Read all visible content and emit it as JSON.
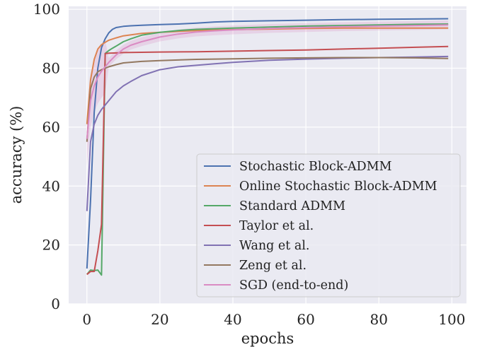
{
  "chart_data": {
    "type": "line",
    "title": "",
    "xlabel": "epochs",
    "ylabel": "accuracy (%)",
    "xlim": [
      -5,
      104
    ],
    "ylim": [
      0,
      101
    ],
    "xticks": [
      0,
      20,
      40,
      60,
      80,
      100
    ],
    "yticks": [
      0,
      20,
      40,
      60,
      80,
      100
    ],
    "xtick_labels": [
      "0",
      "20",
      "40",
      "60",
      "80",
      "100"
    ],
    "ytick_labels": [
      "0",
      "20",
      "40",
      "60",
      "80",
      "100"
    ],
    "grid": true,
    "legend_position": "lower-right",
    "series": [
      {
        "name": "Stochastic Block-ADMM",
        "color": "#4c72b0",
        "x": [
          0,
          1,
          2,
          3,
          4,
          5,
          6,
          7,
          8,
          10,
          12,
          15,
          20,
          25,
          30,
          35,
          40,
          50,
          60,
          70,
          80,
          90,
          99
        ],
        "y": [
          12,
          35,
          65,
          80,
          87,
          90,
          92,
          93.2,
          93.8,
          94.2,
          94.4,
          94.6,
          94.8,
          95.0,
          95.3,
          95.7,
          95.9,
          96.1,
          96.3,
          96.5,
          96.6,
          96.7,
          96.8
        ]
      },
      {
        "name": "Online Stochastic Block-ADMM",
        "color": "#dd8452",
        "x": [
          0,
          1,
          2,
          3,
          4,
          5,
          6,
          8,
          10,
          15,
          20,
          25,
          30,
          40,
          50,
          60,
          70,
          80,
          90,
          99
        ],
        "y": [
          61,
          76,
          83,
          86.5,
          88,
          88.8,
          89.5,
          90.3,
          91,
          91.8,
          92.2,
          92.5,
          92.8,
          93.1,
          93.3,
          93.5,
          93.6,
          93.6,
          93.6,
          93.6
        ]
      },
      {
        "name": "Standard ADMM",
        "color": "#55a868",
        "x": [
          0,
          1,
          2,
          3,
          4,
          5,
          6,
          7,
          8,
          10,
          12,
          15,
          20,
          25,
          30,
          40,
          50,
          60,
          70,
          80,
          90,
          99
        ],
        "y": [
          10,
          11.5,
          11.3,
          11.5,
          9.8,
          85,
          86,
          86.8,
          87.5,
          89,
          90,
          91.2,
          92.2,
          92.8,
          93.2,
          93.6,
          94,
          94.3,
          94.5,
          94.7,
          94.9,
          95
        ]
      },
      {
        "name": "Taylor et al.",
        "color": "#c44e52",
        "x": [
          0,
          1,
          2,
          3,
          4,
          5,
          6,
          8,
          10,
          20,
          30,
          40,
          50,
          60,
          70,
          80,
          90,
          99
        ],
        "y": [
          10,
          11,
          11,
          18,
          27,
          85,
          85.1,
          85.2,
          85.3,
          85.5,
          85.6,
          85.8,
          86,
          86.2,
          86.5,
          86.8,
          87.1,
          87.4
        ]
      },
      {
        "name": "Wang et al.",
        "color": "#8172b3",
        "x": [
          0,
          1,
          2,
          3,
          4,
          5,
          6,
          8,
          10,
          12,
          15,
          20,
          25,
          30,
          35,
          40,
          50,
          60,
          70,
          80,
          90,
          99
        ],
        "y": [
          31.5,
          55,
          61,
          64,
          66,
          67.5,
          69,
          72,
          74,
          75.5,
          77.5,
          79.5,
          80.5,
          81,
          81.5,
          82,
          82.7,
          83.1,
          83.4,
          83.6,
          83.8,
          84
        ]
      },
      {
        "name": "Zeng et al.",
        "color": "#937860",
        "x": [
          0,
          1,
          2,
          3,
          4,
          5,
          6,
          8,
          10,
          15,
          20,
          30,
          40,
          50,
          60,
          70,
          80,
          90,
          99
        ],
        "y": [
          55,
          73,
          77,
          78.8,
          79.5,
          80,
          80.5,
          81.2,
          81.8,
          82.3,
          82.6,
          83,
          83.2,
          83.4,
          83.5,
          83.6,
          83.6,
          83.5,
          83.3
        ]
      },
      {
        "name": "SGD (end-to-end)",
        "color": "#da8bc3",
        "x": [
          0,
          1,
          2,
          3,
          4,
          5,
          6,
          8,
          10,
          12,
          15,
          20,
          25,
          30,
          35,
          40,
          50,
          60,
          70,
          80,
          90,
          99
        ],
        "y": [
          56,
          69,
          74,
          77,
          79,
          80.5,
          82,
          84.5,
          86.5,
          87.8,
          89,
          90.6,
          91.6,
          92.3,
          92.7,
          93,
          93.5,
          93.8,
          94.1,
          94.3,
          94.5,
          94.7
        ],
        "band": 1.5
      }
    ]
  }
}
